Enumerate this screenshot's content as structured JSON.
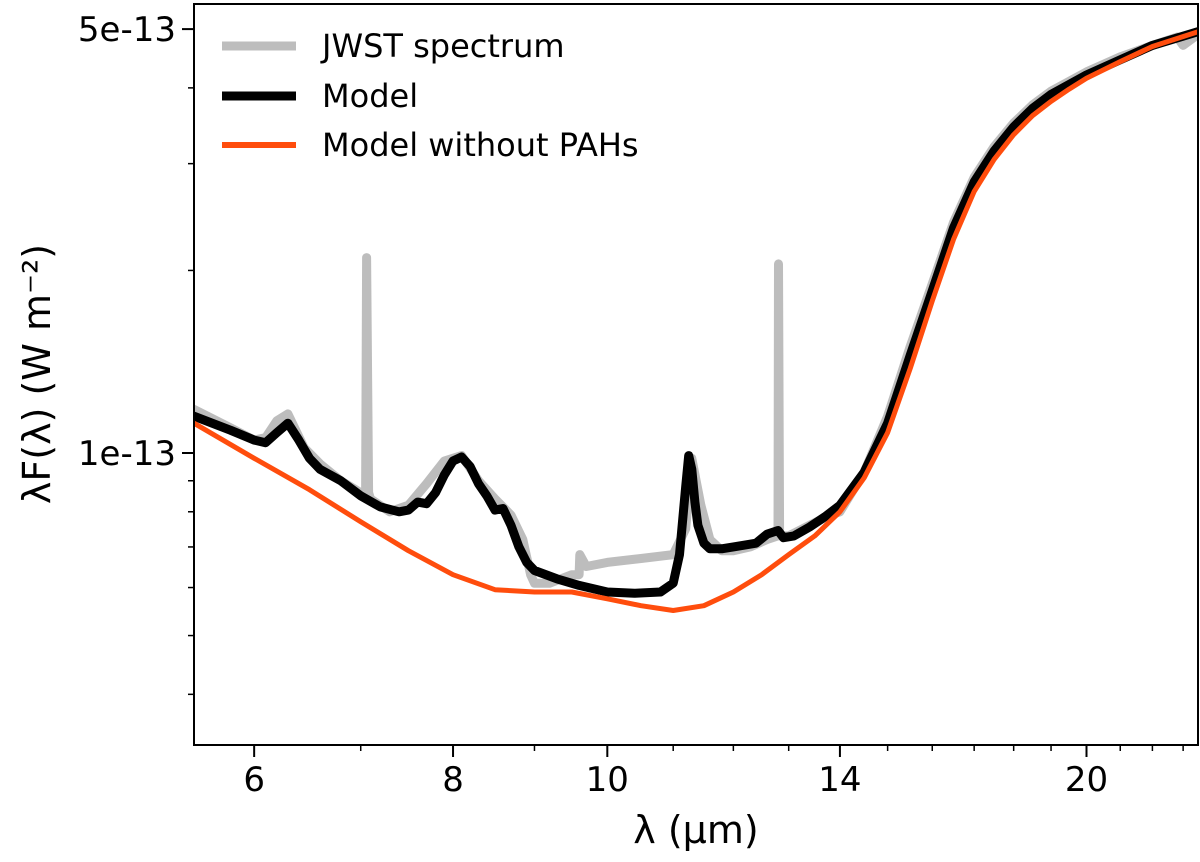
{
  "chart_data": {
    "type": "line",
    "title": "",
    "xlabel": "λ (μm)",
    "ylabel": "λF(λ) (W m⁻²)",
    "x_scale": "log",
    "y_scale": "log",
    "xlim": [
      5.5,
      23.5
    ],
    "ylim": [
      3.3e-14,
      5.5e-13
    ],
    "x_ticks": [
      {
        "value": 6,
        "label": "6"
      },
      {
        "value": 8,
        "label": "8"
      },
      {
        "value": 10,
        "label": "10"
      },
      {
        "value": 14,
        "label": "14"
      },
      {
        "value": 20,
        "label": "20"
      }
    ],
    "x_minor_ticks": [
      7,
      9,
      11,
      12,
      13,
      15,
      16,
      17,
      18,
      19,
      21,
      22,
      23
    ],
    "y_ticks": [
      {
        "value": 1e-13,
        "label": "1e-13"
      },
      {
        "value": 5e-13,
        "label": "5e-13"
      }
    ],
    "y_minor_ticks": [
      4e-14,
      5e-14,
      6e-14,
      7e-14,
      8e-14,
      9e-14,
      2e-13,
      3e-13,
      4e-13
    ],
    "legend_position": "top-left",
    "series": [
      {
        "name": "JWST spectrum",
        "color": "#bdbdbd",
        "x": [
          5.5,
          5.8,
          6.0,
          6.1,
          6.2,
          6.3,
          6.45,
          6.6,
          6.8,
          7.0,
          7.05,
          7.06,
          7.08,
          7.1,
          7.3,
          7.5,
          7.7,
          7.9,
          8.1,
          8.3,
          8.5,
          8.7,
          8.85,
          8.95,
          9.0,
          9.2,
          9.5,
          9.6,
          9.61,
          9.7,
          10.0,
          10.5,
          11.0,
          11.2,
          11.3,
          11.45,
          11.6,
          11.8,
          12.0,
          12.3,
          12.6,
          12.8,
          12.81,
          12.83,
          12.85,
          13.0,
          13.4,
          13.8,
          14.0,
          14.5,
          15.0,
          15.5,
          16.0,
          16.5,
          17.0,
          17.5,
          18.0,
          18.5,
          19.0,
          19.5,
          20.0,
          21.0,
          22.0,
          22.8,
          23.0,
          23.5
        ],
        "y": [
          1.18e-13,
          1.1e-13,
          1.05e-13,
          1.06e-13,
          1.13e-13,
          1.16e-13,
          1.02e-13,
          9.6e-14,
          9e-14,
          8.6e-14,
          8.6e-14,
          2.1e-13,
          8.6e-14,
          8.4e-14,
          8e-14,
          8.2e-14,
          8.9e-14,
          9.7e-14,
          9.9e-14,
          9e-14,
          8.4e-14,
          7.9e-14,
          7.2e-14,
          6.3e-14,
          6.1e-14,
          6.1e-14,
          6.3e-14,
          6.3e-14,
          6.8e-14,
          6.5e-14,
          6.6e-14,
          6.7e-14,
          6.8e-14,
          7.5e-14,
          9.8e-14,
          8.2e-14,
          7.2e-14,
          6.9e-14,
          6.9e-14,
          7e-14,
          7.2e-14,
          7.3e-14,
          2.05e-13,
          7.3e-14,
          7.3e-14,
          7.3e-14,
          7.6e-14,
          7.9e-14,
          8e-14,
          9.3e-14,
          1.15e-13,
          1.5e-13,
          1.9e-13,
          2.4e-13,
          2.85e-13,
          3.2e-13,
          3.5e-13,
          3.75e-13,
          3.95e-13,
          4.1e-13,
          4.25e-13,
          4.5e-13,
          4.7e-13,
          4.85e-13,
          4.7e-13,
          4.9e-13
        ]
      },
      {
        "name": "Model",
        "color": "#000000",
        "x": [
          5.5,
          5.8,
          6.0,
          6.1,
          6.2,
          6.3,
          6.4,
          6.5,
          6.6,
          6.8,
          7.0,
          7.2,
          7.4,
          7.5,
          7.6,
          7.7,
          7.8,
          7.9,
          8.0,
          8.1,
          8.2,
          8.3,
          8.4,
          8.5,
          8.6,
          8.7,
          8.8,
          8.9,
          9.0,
          9.3,
          9.6,
          10.0,
          10.4,
          10.8,
          11.0,
          11.1,
          11.2,
          11.25,
          11.3,
          11.35,
          11.4,
          11.5,
          11.6,
          11.8,
          12.0,
          12.2,
          12.4,
          12.6,
          12.8,
          12.9,
          13.1,
          13.4,
          13.7,
          14.0,
          14.5,
          15.0,
          15.5,
          16.0,
          16.5,
          17.0,
          17.5,
          18.0,
          18.5,
          19.0,
          19.5,
          20.0,
          21.0,
          22.0,
          23.5
        ],
        "y": [
          1.15e-13,
          1.09e-13,
          1.05e-13,
          1.04e-13,
          1.08e-13,
          1.12e-13,
          1.05e-13,
          9.8e-14,
          9.4e-14,
          9e-14,
          8.5e-14,
          8.15e-14,
          8e-14,
          8.05e-14,
          8.3e-14,
          8.25e-14,
          8.6e-14,
          9.2e-14,
          9.7e-14,
          9.85e-14,
          9.5e-14,
          8.9e-14,
          8.5e-14,
          8.05e-14,
          8.1e-14,
          7.6e-14,
          7e-14,
          6.6e-14,
          6.4e-14,
          6.2e-14,
          6.05e-14,
          5.9e-14,
          5.87e-14,
          5.9e-14,
          6.1e-14,
          6.8e-14,
          8.8e-14,
          9.9e-14,
          9.4e-14,
          8.3e-14,
          7.6e-14,
          7.1e-14,
          6.95e-14,
          6.95e-14,
          7e-14,
          7.05e-14,
          7.1e-14,
          7.35e-14,
          7.45e-14,
          7.25e-14,
          7.3e-14,
          7.55e-14,
          7.85e-14,
          8.2e-14,
          9.3e-14,
          1.12e-13,
          1.45e-13,
          1.85e-13,
          2.35e-13,
          2.8e-13,
          3.15e-13,
          3.45e-13,
          3.7e-13,
          3.9e-13,
          4.05e-13,
          4.2e-13,
          4.45e-13,
          4.7e-13,
          4.95e-13
        ]
      },
      {
        "name": "Model without PAHs",
        "color": "#ff4d0d",
        "x": [
          5.5,
          6.0,
          6.5,
          7.0,
          7.5,
          8.0,
          8.5,
          9.0,
          9.5,
          10.0,
          10.5,
          11.0,
          11.5,
          12.0,
          12.5,
          13.0,
          13.5,
          14.0,
          14.5,
          15.0,
          15.5,
          16.0,
          16.5,
          17.0,
          17.5,
          18.0,
          18.5,
          19.0,
          19.5,
          20.0,
          21.0,
          22.0,
          23.5
        ],
        "y": [
          1.12e-13,
          9.8e-14,
          8.7e-14,
          7.7e-14,
          6.9e-14,
          6.3e-14,
          5.95e-14,
          5.9e-14,
          5.9e-14,
          5.75e-14,
          5.6e-14,
          5.5e-14,
          5.6e-14,
          5.9e-14,
          6.3e-14,
          6.8e-14,
          7.3e-14,
          8e-14,
          9.1e-14,
          1.08e-13,
          1.38e-13,
          1.78e-13,
          2.25e-13,
          2.7e-13,
          3.05e-13,
          3.35e-13,
          3.6e-13,
          3.8e-13,
          3.98e-13,
          4.15e-13,
          4.42e-13,
          4.68e-13,
          4.95e-13
        ]
      }
    ]
  }
}
